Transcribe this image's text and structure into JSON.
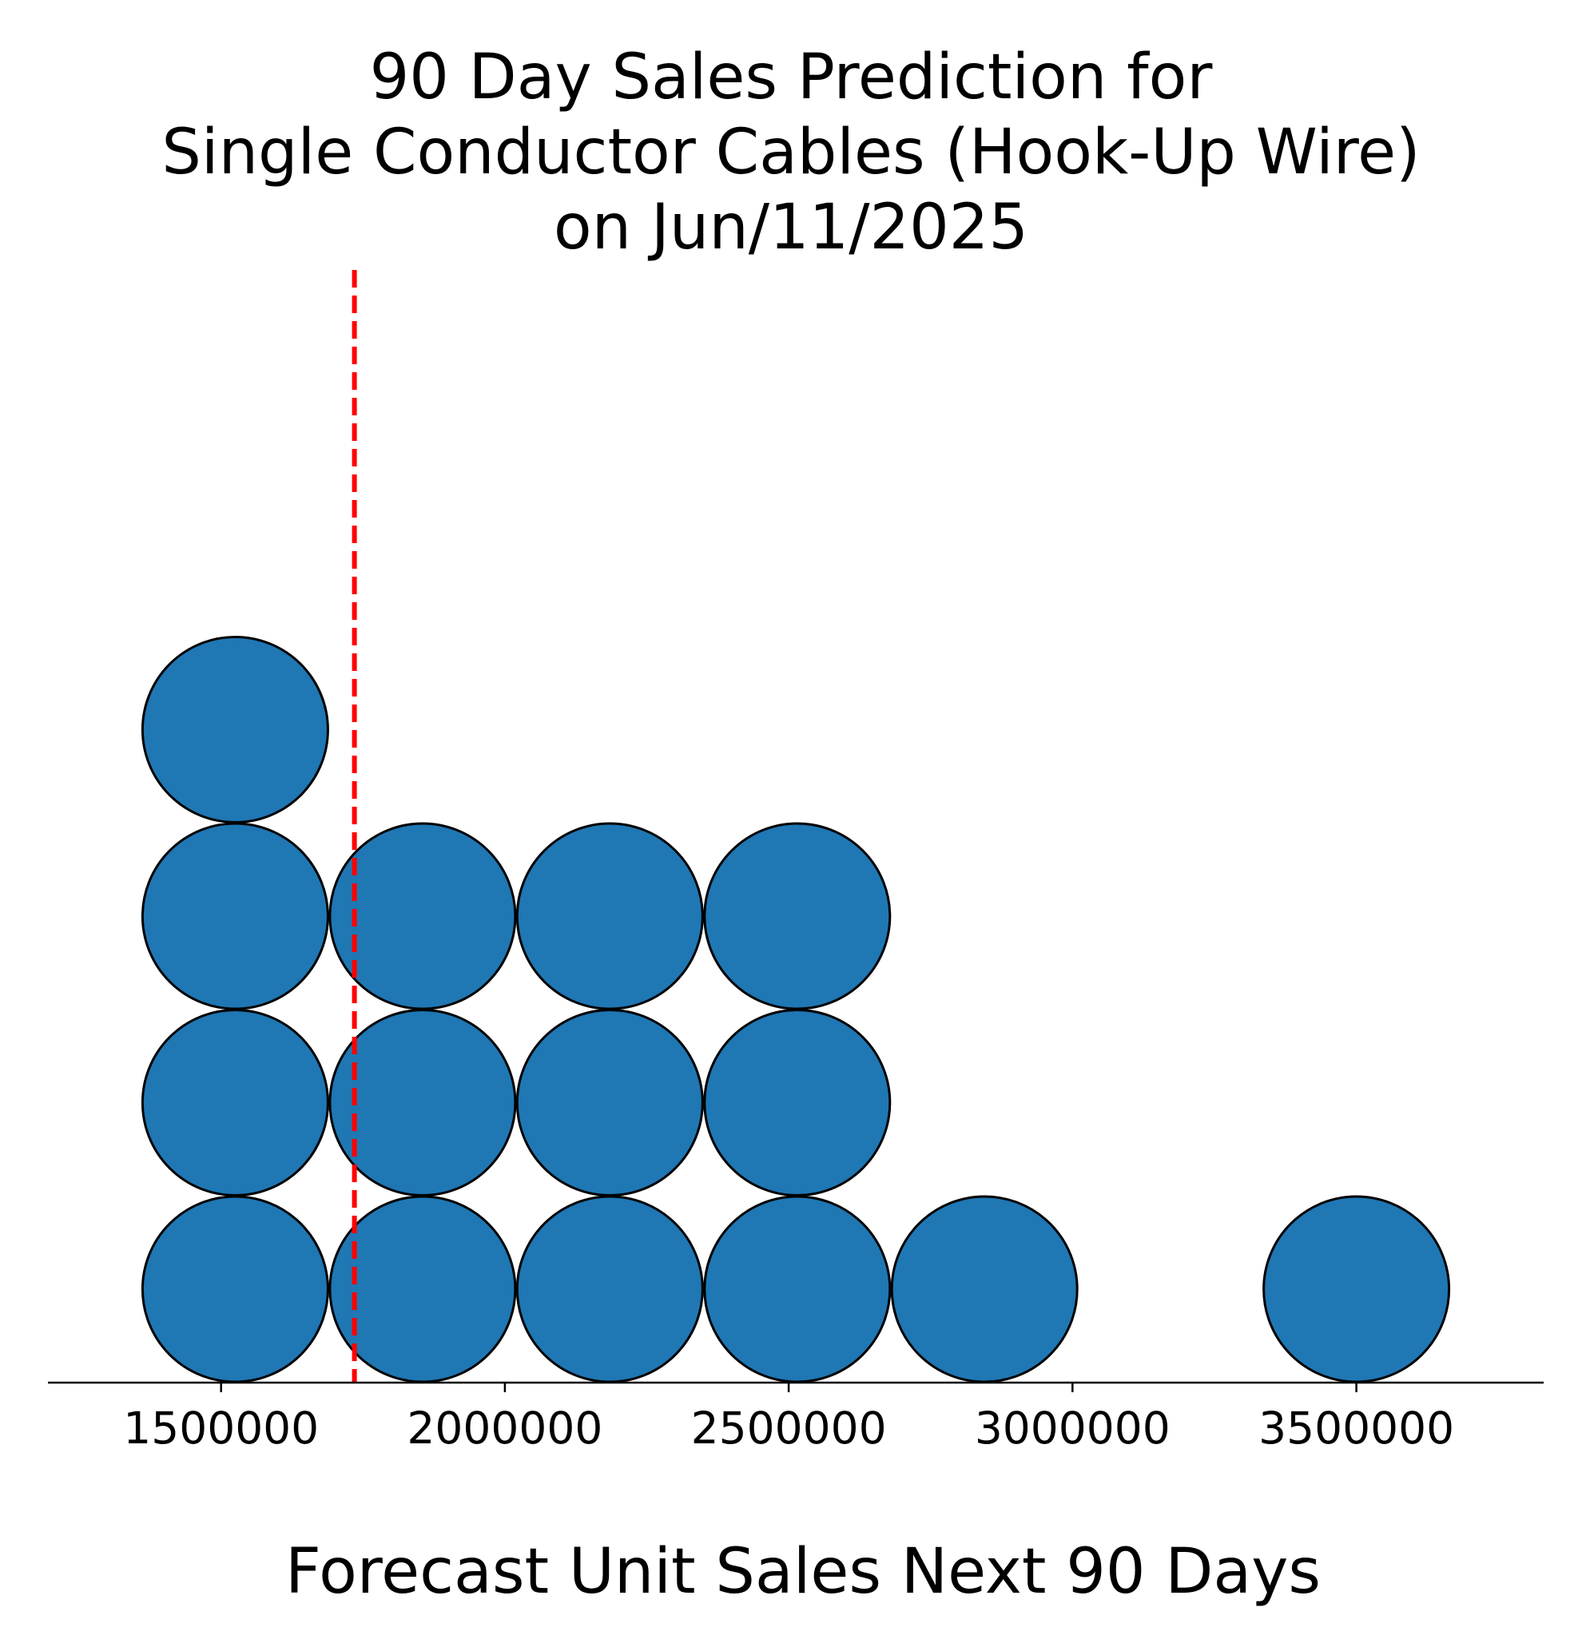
{
  "chart_data": {
    "type": "scatter",
    "subtype": "dot-plot",
    "title_lines": [
      "90 Day Sales Prediction for",
      "Single Conductor Cables (Hook-Up Wire)",
      "on Jun/11/2025"
    ],
    "xlabel": "Forecast Unit Sales Next 90 Days",
    "ylabel": "",
    "xlim": [
      1195000,
      3830000
    ],
    "xticks": [
      1500000,
      2000000,
      2500000,
      3000000,
      3500000
    ],
    "xtick_labels": [
      "1500000",
      "2000000",
      "2500000",
      "3000000",
      "3500000"
    ],
    "stacks": [
      {
        "x": 1525000,
        "count": 4
      },
      {
        "x": 1855000,
        "count": 3
      },
      {
        "x": 2185000,
        "count": 3
      },
      {
        "x": 2515000,
        "count": 3
      },
      {
        "x": 2845000,
        "count": 1
      },
      {
        "x": 3500000,
        "count": 1
      }
    ],
    "reference_line": {
      "x": 1735000,
      "style": "dashed"
    },
    "colors": {
      "dot_fill": "#1f77b4",
      "dot_edge": "#000000",
      "reference_line": "#ff0000",
      "axis": "#000000"
    },
    "grid": false,
    "y_axis_visible": false
  }
}
